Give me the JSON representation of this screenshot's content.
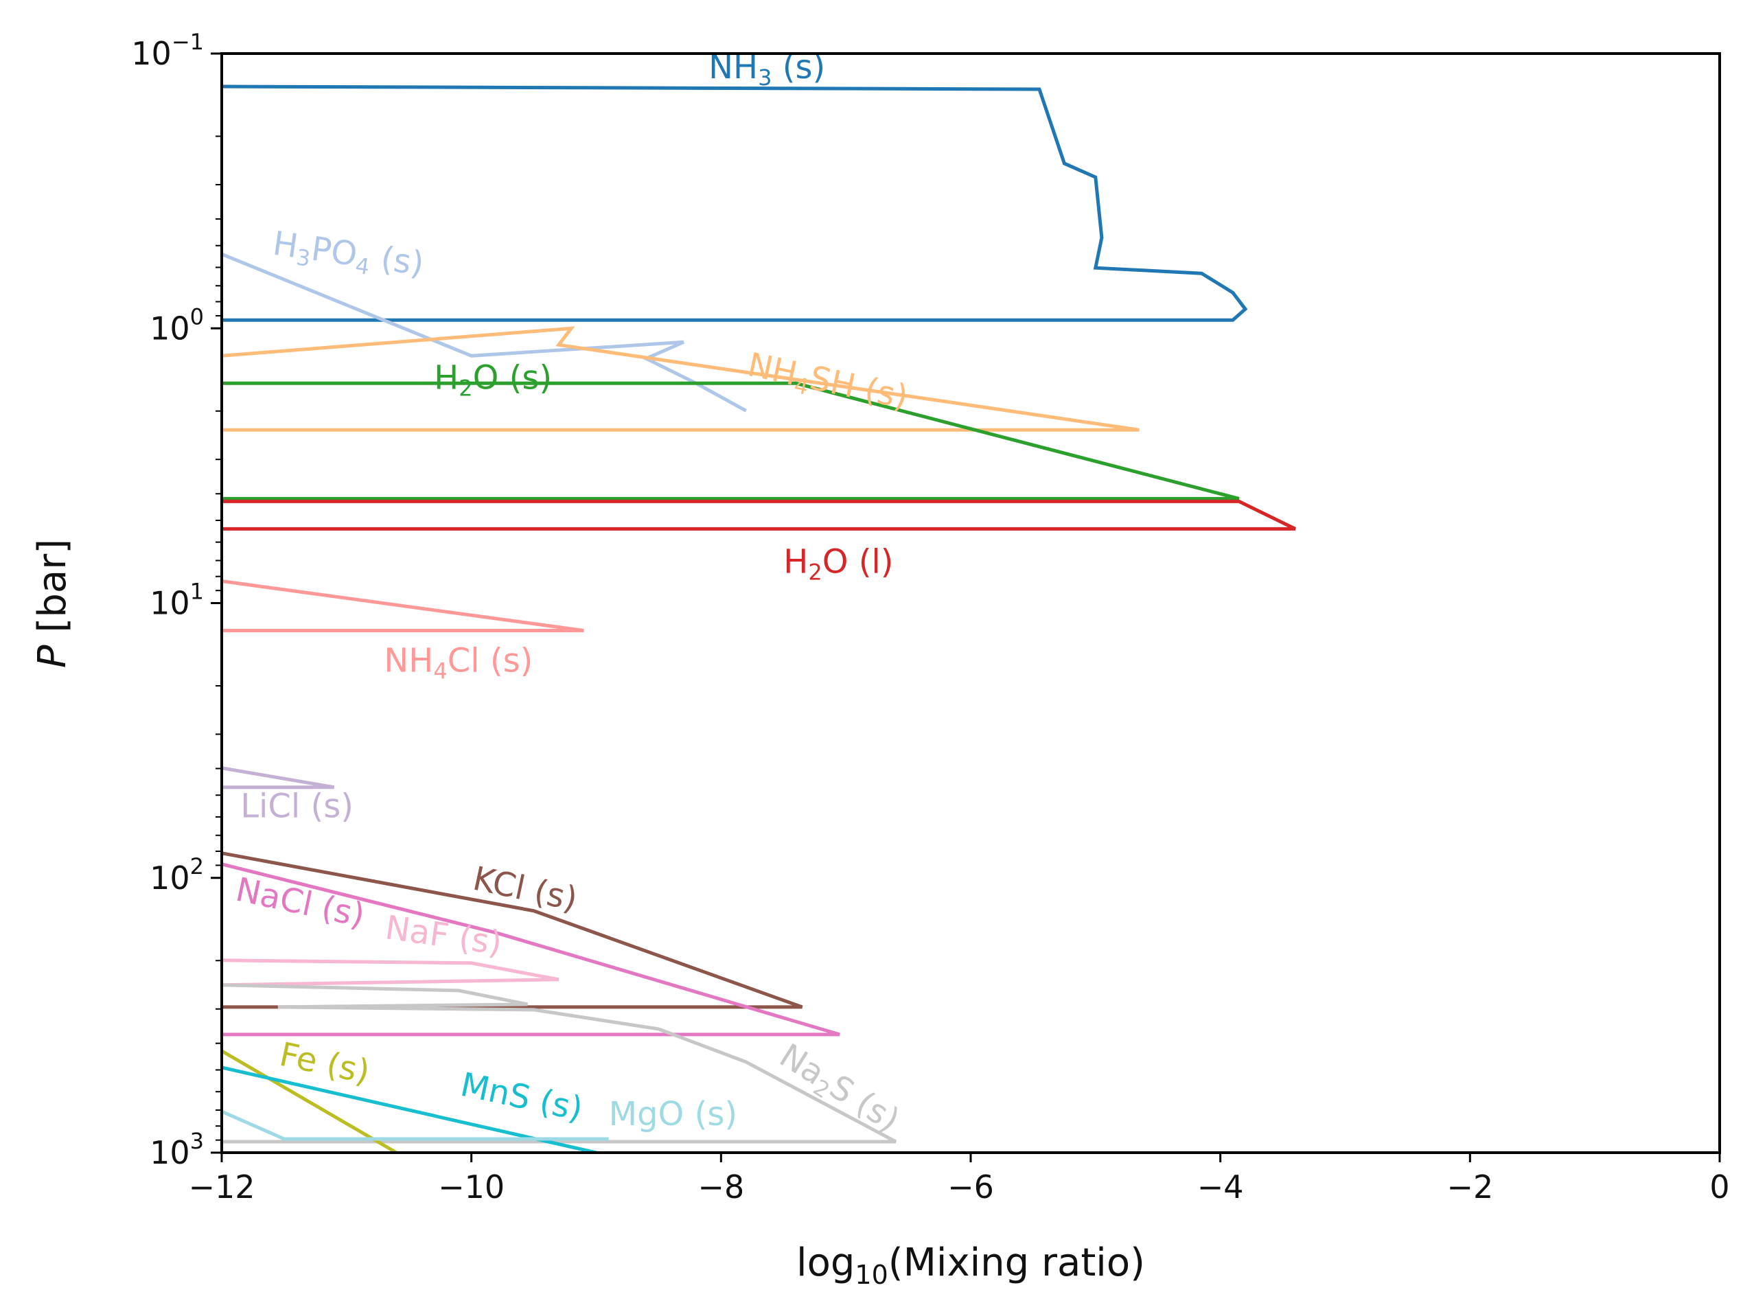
{
  "chart_data": {
    "type": "line",
    "xlabel": "log10(Mixing ratio)",
    "ylabel": "P [bar]",
    "xlim": [
      -12,
      0
    ],
    "ylim_log10": [
      -1,
      3
    ],
    "yscale": "log",
    "x_ticks": [
      {
        "value": -12,
        "label": "−12"
      },
      {
        "value": -10,
        "label": "−10"
      },
      {
        "value": -8,
        "label": "−8"
      },
      {
        "value": -6,
        "label": "−6"
      },
      {
        "value": -4,
        "label": "−4"
      },
      {
        "value": -2,
        "label": "−2"
      },
      {
        "value": 0,
        "label": "0"
      }
    ],
    "y_ticks": [
      {
        "value": -1,
        "base": "10",
        "exp": "−1"
      },
      {
        "value": 0,
        "base": "10",
        "exp": "0"
      },
      {
        "value": 1,
        "base": "10",
        "exp": "1"
      },
      {
        "value": 2,
        "base": "10",
        "exp": "2"
      },
      {
        "value": 3,
        "base": "10",
        "exp": "3"
      }
    ],
    "series": [
      {
        "name": "NH3 (s)",
        "label_base": "NH",
        "label_sub": "3",
        "label_suffix": " (s)",
        "color": "#1f77b4",
        "label_at": [
          -8.1,
          -0.91
        ],
        "label_angle": 0,
        "points": [
          [
            -12,
            -0.88
          ],
          [
            -5.45,
            -0.87
          ],
          [
            -5.25,
            -0.6
          ],
          [
            -5.0,
            -0.55
          ],
          [
            -4.95,
            -0.33
          ],
          [
            -5.0,
            -0.22
          ],
          [
            -4.15,
            -0.2
          ],
          [
            -3.9,
            -0.13
          ],
          [
            -3.8,
            -0.07
          ],
          [
            -3.9,
            -0.03
          ],
          [
            -12,
            -0.03
          ]
        ]
      },
      {
        "name": "H3PO4 (s)",
        "label_base": "H",
        "label_sub": "3",
        "label_mid": "PO",
        "label_sub2": "4",
        "label_suffix": " (s)",
        "color": "#aec7e8",
        "label_at": [
          -11.6,
          -0.27
        ],
        "label_angle": 8,
        "points": [
          [
            -12,
            -0.27
          ],
          [
            -10.0,
            0.1
          ],
          [
            -8.3,
            0.05
          ],
          [
            -8.6,
            0.11
          ],
          [
            -8.2,
            0.2
          ],
          [
            -7.8,
            0.3
          ]
        ]
      },
      {
        "name": "NH4SH (s)",
        "label_base": "NH",
        "label_sub": "4",
        "label_suffix": "SH (s)",
        "color": "#ffbb78",
        "label_at": [
          -7.8,
          0.17
        ],
        "label_angle": 12,
        "points": [
          [
            -12,
            0.1
          ],
          [
            -9.2,
            0.0
          ],
          [
            -9.3,
            0.06
          ],
          [
            -4.65,
            0.37
          ],
          [
            -12,
            0.37
          ]
        ]
      },
      {
        "name": "H2O (s)",
        "label_base": "H",
        "label_sub": "2",
        "label_suffix": "O (s)",
        "color": "#2ca02c",
        "label_at": [
          -10.3,
          0.22
        ],
        "label_angle": 0,
        "points": [
          [
            -12,
            0.2
          ],
          [
            -7.4,
            0.2
          ],
          [
            -3.85,
            0.62
          ],
          [
            -12,
            0.62
          ]
        ]
      },
      {
        "name": "H2O (l)",
        "label_base": "H",
        "label_sub": "2",
        "label_suffix": "O (l)",
        "color": "#d62728",
        "label_at": [
          -7.5,
          0.89
        ],
        "label_angle": 0,
        "points": [
          [
            -12,
            0.63
          ],
          [
            -3.85,
            0.63
          ],
          [
            -3.4,
            0.73
          ],
          [
            -12,
            0.73
          ]
        ]
      },
      {
        "name": "NH4Cl (s)",
        "label_base": "NH",
        "label_sub": "4",
        "label_suffix": "Cl (s)",
        "color": "#ff9896",
        "label_at": [
          -10.7,
          1.25
        ],
        "label_angle": 0,
        "points": [
          [
            -12,
            0.92
          ],
          [
            -9.1,
            1.1
          ],
          [
            -12,
            1.1
          ]
        ]
      },
      {
        "name": "LiCl (s)",
        "label_base": "LiCl",
        "label_suffix": " (s)",
        "color": "#c5b0d5",
        "label_at": [
          -11.85,
          1.78
        ],
        "label_angle": 0,
        "points": [
          [
            -12,
            1.6
          ],
          [
            -11.1,
            1.67
          ],
          [
            -12,
            1.67
          ]
        ]
      },
      {
        "name": "KCl (s)",
        "label_base": "KCl",
        "label_suffix": " (s)",
        "color": "#8c564b",
        "label_at": [
          -10.0,
          2.04
        ],
        "label_angle": 12,
        "points": [
          [
            -12,
            1.91
          ],
          [
            -9.5,
            2.12
          ],
          [
            -7.35,
            2.47
          ],
          [
            -12,
            2.47
          ]
        ]
      },
      {
        "name": "NaCl (s)",
        "label_base": "NaCl",
        "label_suffix": " (s)",
        "color": "#e377c2",
        "label_at": [
          -11.9,
          2.08
        ],
        "label_angle": 12,
        "points": [
          [
            -12,
            1.95
          ],
          [
            -9.8,
            2.2
          ],
          [
            -7.05,
            2.57
          ],
          [
            -12,
            2.57
          ]
        ]
      },
      {
        "name": "NaF (s)",
        "label_base": "NaF",
        "label_suffix": " (s)",
        "color": "#f7b6d2",
        "label_at": [
          -10.7,
          2.22
        ],
        "label_angle": 8,
        "points": [
          [
            -12,
            2.3
          ],
          [
            -10.0,
            2.31
          ],
          [
            -9.3,
            2.37
          ],
          [
            -12,
            2.39
          ]
        ]
      },
      {
        "name": "Na2S (s)",
        "label_base": "Na",
        "label_sub": "2",
        "label_suffix": "S (s)",
        "color": "#c7c7c7",
        "label_at": [
          -7.55,
          2.67
        ],
        "label_angle": 32,
        "points": [
          [
            -12,
            2.39
          ],
          [
            -10.1,
            2.41
          ],
          [
            -9.55,
            2.46
          ],
          [
            -11.55,
            2.47
          ],
          [
            -9.5,
            2.48
          ],
          [
            -8.5,
            2.55
          ],
          [
            -7.8,
            2.67
          ],
          [
            -6.6,
            2.96
          ],
          [
            -12,
            2.96
          ]
        ]
      },
      {
        "name": "Fe (s)",
        "label_base": "Fe",
        "label_suffix": " (s)",
        "color": "#bcbd22",
        "label_at": [
          -11.55,
          2.68
        ],
        "label_angle": 12,
        "points": [
          [
            -12,
            2.63
          ],
          [
            -10.6,
            3.0
          ]
        ]
      },
      {
        "name": "MnS (s)",
        "label_base": "MnS",
        "label_suffix": " (s)",
        "color": "#17becf",
        "label_at": [
          -10.1,
          2.79
        ],
        "label_angle": 12,
        "points": [
          [
            -12,
            2.69
          ],
          [
            -9.0,
            3.0
          ]
        ]
      },
      {
        "name": "MgO (s)",
        "label_base": "MgO",
        "label_suffix": " (s)",
        "color": "#9edae5",
        "label_at": [
          -8.9,
          2.9
        ],
        "label_angle": 0,
        "points": [
          [
            -12,
            2.85
          ],
          [
            -11.5,
            2.95
          ],
          [
            -8.9,
            2.95
          ]
        ]
      }
    ]
  }
}
